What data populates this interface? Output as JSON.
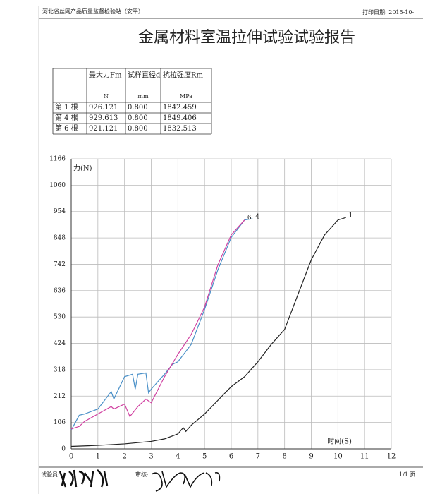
{
  "header": {
    "station": "河北省丝网产品质量监督检验站（安平）",
    "print_date": "打印日期: 2015-10-"
  },
  "title": "金属材料室温拉伸试验试验报告",
  "table": {
    "columns": [
      "最大力Fm",
      "试样直径d",
      "抗拉强度Rm"
    ],
    "units": [
      "N",
      "mm",
      "MPa"
    ],
    "rows": [
      [
        "第 1 根",
        "926.121",
        "0.800",
        "1842.459"
      ],
      [
        "第 4 根",
        "929.613",
        "0.800",
        "1849.406"
      ],
      [
        "第 6 根",
        "921.121",
        "0.800",
        "1832.513"
      ]
    ]
  },
  "chart_data": {
    "type": "line",
    "y_label": "力(N)",
    "x_label": "时间(S)",
    "grid": true,
    "xlim": [
      0,
      12
    ],
    "xticks": [
      0,
      1,
      2,
      3,
      4,
      5,
      6,
      7,
      8,
      9,
      10,
      11,
      12
    ],
    "ylim": [
      0,
      1166
    ],
    "yticks": [
      0,
      106,
      212,
      318,
      424,
      530,
      636,
      742,
      848,
      954,
      1060,
      1166
    ],
    "series": [
      {
        "name": "1",
        "color": "#222222",
        "x": [
          0,
          1,
          2,
          3,
          3.5,
          4,
          4.2,
          4.3,
          4.5,
          5,
          5.5,
          6,
          6.5,
          7,
          7.5,
          8,
          8.5,
          9,
          9.5,
          10,
          10.3
        ],
        "values": [
          10,
          14,
          20,
          30,
          40,
          60,
          85,
          70,
          95,
          140,
          195,
          250,
          290,
          350,
          420,
          480,
          620,
          760,
          860,
          920,
          930
        ]
      },
      {
        "name": "4",
        "color": "#4a90c8",
        "x": [
          0,
          0.3,
          0.5,
          1,
          1.5,
          1.6,
          2,
          2.3,
          2.4,
          2.5,
          2.8,
          2.9,
          3,
          3.5,
          3.8,
          4,
          4.5,
          5,
          5.5,
          6,
          6.5,
          6.8
        ],
        "values": [
          75,
          135,
          140,
          160,
          230,
          200,
          290,
          300,
          240,
          300,
          305,
          225,
          240,
          300,
          340,
          350,
          420,
          560,
          720,
          850,
          920,
          925
        ]
      },
      {
        "name": "6",
        "color": "#d040a0",
        "x": [
          0,
          0.3,
          0.5,
          1,
          1.5,
          1.6,
          2,
          2.2,
          2.5,
          2.8,
          3,
          3.5,
          4,
          4.5,
          5,
          5.5,
          6,
          6.5
        ],
        "values": [
          80,
          90,
          110,
          140,
          170,
          160,
          180,
          130,
          170,
          200,
          185,
          290,
          380,
          460,
          570,
          740,
          860,
          920
        ]
      }
    ]
  },
  "footer": {
    "tester": "试验员:",
    "reviewer": "审核:",
    "page": "1/1 页"
  }
}
